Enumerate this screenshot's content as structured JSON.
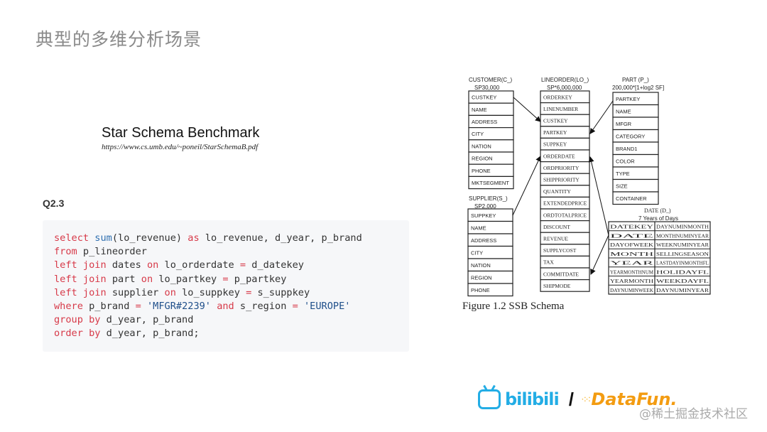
{
  "slide": {
    "title": "典型的多维分析场景",
    "benchmark_title": "Star Schema Benchmark",
    "benchmark_url": "https://www.cs.umb.edu/~poneil/StarSchemaB.pdf",
    "query_label": "Q2.3"
  },
  "code": {
    "lines": [
      [
        [
          "kw",
          "select "
        ],
        [
          "fn",
          "sum"
        ],
        [
          "t",
          "(lo_revenue) "
        ],
        [
          "kw",
          "as"
        ],
        [
          "t",
          " lo_revenue, d_year, p_brand"
        ]
      ],
      [
        [
          "kw",
          "from"
        ],
        [
          "t",
          " p_lineorder"
        ]
      ],
      [
        [
          "kw",
          "left join"
        ],
        [
          "t",
          " dates "
        ],
        [
          "kw",
          "on"
        ],
        [
          "t",
          " lo_orderdate "
        ],
        [
          "kw",
          "="
        ],
        [
          "t",
          " d_datekey"
        ]
      ],
      [
        [
          "kw",
          "left join"
        ],
        [
          "t",
          " part "
        ],
        [
          "kw",
          "on"
        ],
        [
          "t",
          " lo_partkey "
        ],
        [
          "kw",
          "="
        ],
        [
          "t",
          " p_partkey"
        ]
      ],
      [
        [
          "kw",
          "left join"
        ],
        [
          "t",
          " supplier "
        ],
        [
          "kw",
          "on"
        ],
        [
          "t",
          " lo_suppkey "
        ],
        [
          "kw",
          "="
        ],
        [
          "t",
          " s_suppkey"
        ]
      ],
      [
        [
          "kw",
          "where"
        ],
        [
          "t",
          " p_brand "
        ],
        [
          "kw",
          "="
        ],
        [
          "t",
          " "
        ],
        [
          "str",
          "'MFGR#2239'"
        ],
        [
          "t",
          " "
        ],
        [
          "kw",
          "and"
        ],
        [
          "t",
          " s_region "
        ],
        [
          "kw",
          "="
        ],
        [
          "t",
          " "
        ],
        [
          "str",
          "'EUROPE'"
        ]
      ],
      [
        [
          "kw",
          "group by"
        ],
        [
          "t",
          " d_year, p_brand"
        ]
      ],
      [
        [
          "kw",
          "order by"
        ],
        [
          "t",
          " d_year, p_brand;"
        ]
      ]
    ]
  },
  "schema": {
    "caption": "Figure 1.2 SSB Schema",
    "tables": {
      "customer": {
        "name": "CUSTOMER(C_)",
        "size": "SP30,000",
        "fields": [
          "CUSTKEY",
          "NAME",
          "ADDRESS",
          "CITY",
          "NATION",
          "REGION",
          "PHONE",
          "MKTSEGMENT"
        ]
      },
      "lineorder": {
        "name": "LINEORDER(LO_)",
        "size": "SP*6,000,000",
        "fields": [
          "ORDERKEY",
          "LINENUMBER",
          "CUSTKEY",
          "PARTKEY",
          "SUPPKEY",
          "ORDERDATE",
          "ORDPRIORITY",
          "SHIPPRIORITY",
          "QUANTITY",
          "EXTENDEDPRICE",
          "ORDTOTALPRICE",
          "DISCOUNT",
          "REVENUE",
          "SUPPLYCOST",
          "TAX",
          "COMMITDATE",
          "SHIPMODE"
        ]
      },
      "part": {
        "name": "PART (P_)",
        "size": "200,000*[1+log2 SF]",
        "fields": [
          "PARTKEY",
          "NAME",
          "MFGR",
          "CATEGORY",
          "BRAND1",
          "COLOR",
          "TYPE",
          "SIZE",
          "CONTAINER"
        ]
      },
      "supplier": {
        "name": "SUPPLIER(S_)",
        "size": "SP2,000",
        "fields": [
          "SUPPKEY",
          "NAME",
          "ADDRESS",
          "CITY",
          "NATION",
          "REGION",
          "PHONE"
        ]
      },
      "date": {
        "name": "DATE (D_)",
        "size": "7 Years of Days",
        "fields_left": [
          "DATEKEY",
          "DATE",
          "DAYOFWEEK",
          "MONTH",
          "YEAR",
          "YEARMONTHNUM",
          "YEARMONTH",
          "DAYNUMINWEEK"
        ],
        "fields_right": [
          "DAYNUMINMONTH",
          "MONTHNUMINYEAR",
          "WEEKNUMINYEAR",
          "SELLINGSEASON",
          "LASTDAYINMONTHFL",
          "HOLIDAYFL",
          "WEEKDAYFL",
          "DAYNUMINYEAR"
        ]
      }
    }
  },
  "footer": {
    "logo_bilibili": "bilibili",
    "separator": "/",
    "logo_datafun": "DataFun.",
    "watermark": "@稀土掘金技术社区"
  },
  "colors": {
    "keyword": "#d73a49",
    "function": "#2f6fb0",
    "bilibili": "#23ade5",
    "datafun": "#f39c12"
  }
}
